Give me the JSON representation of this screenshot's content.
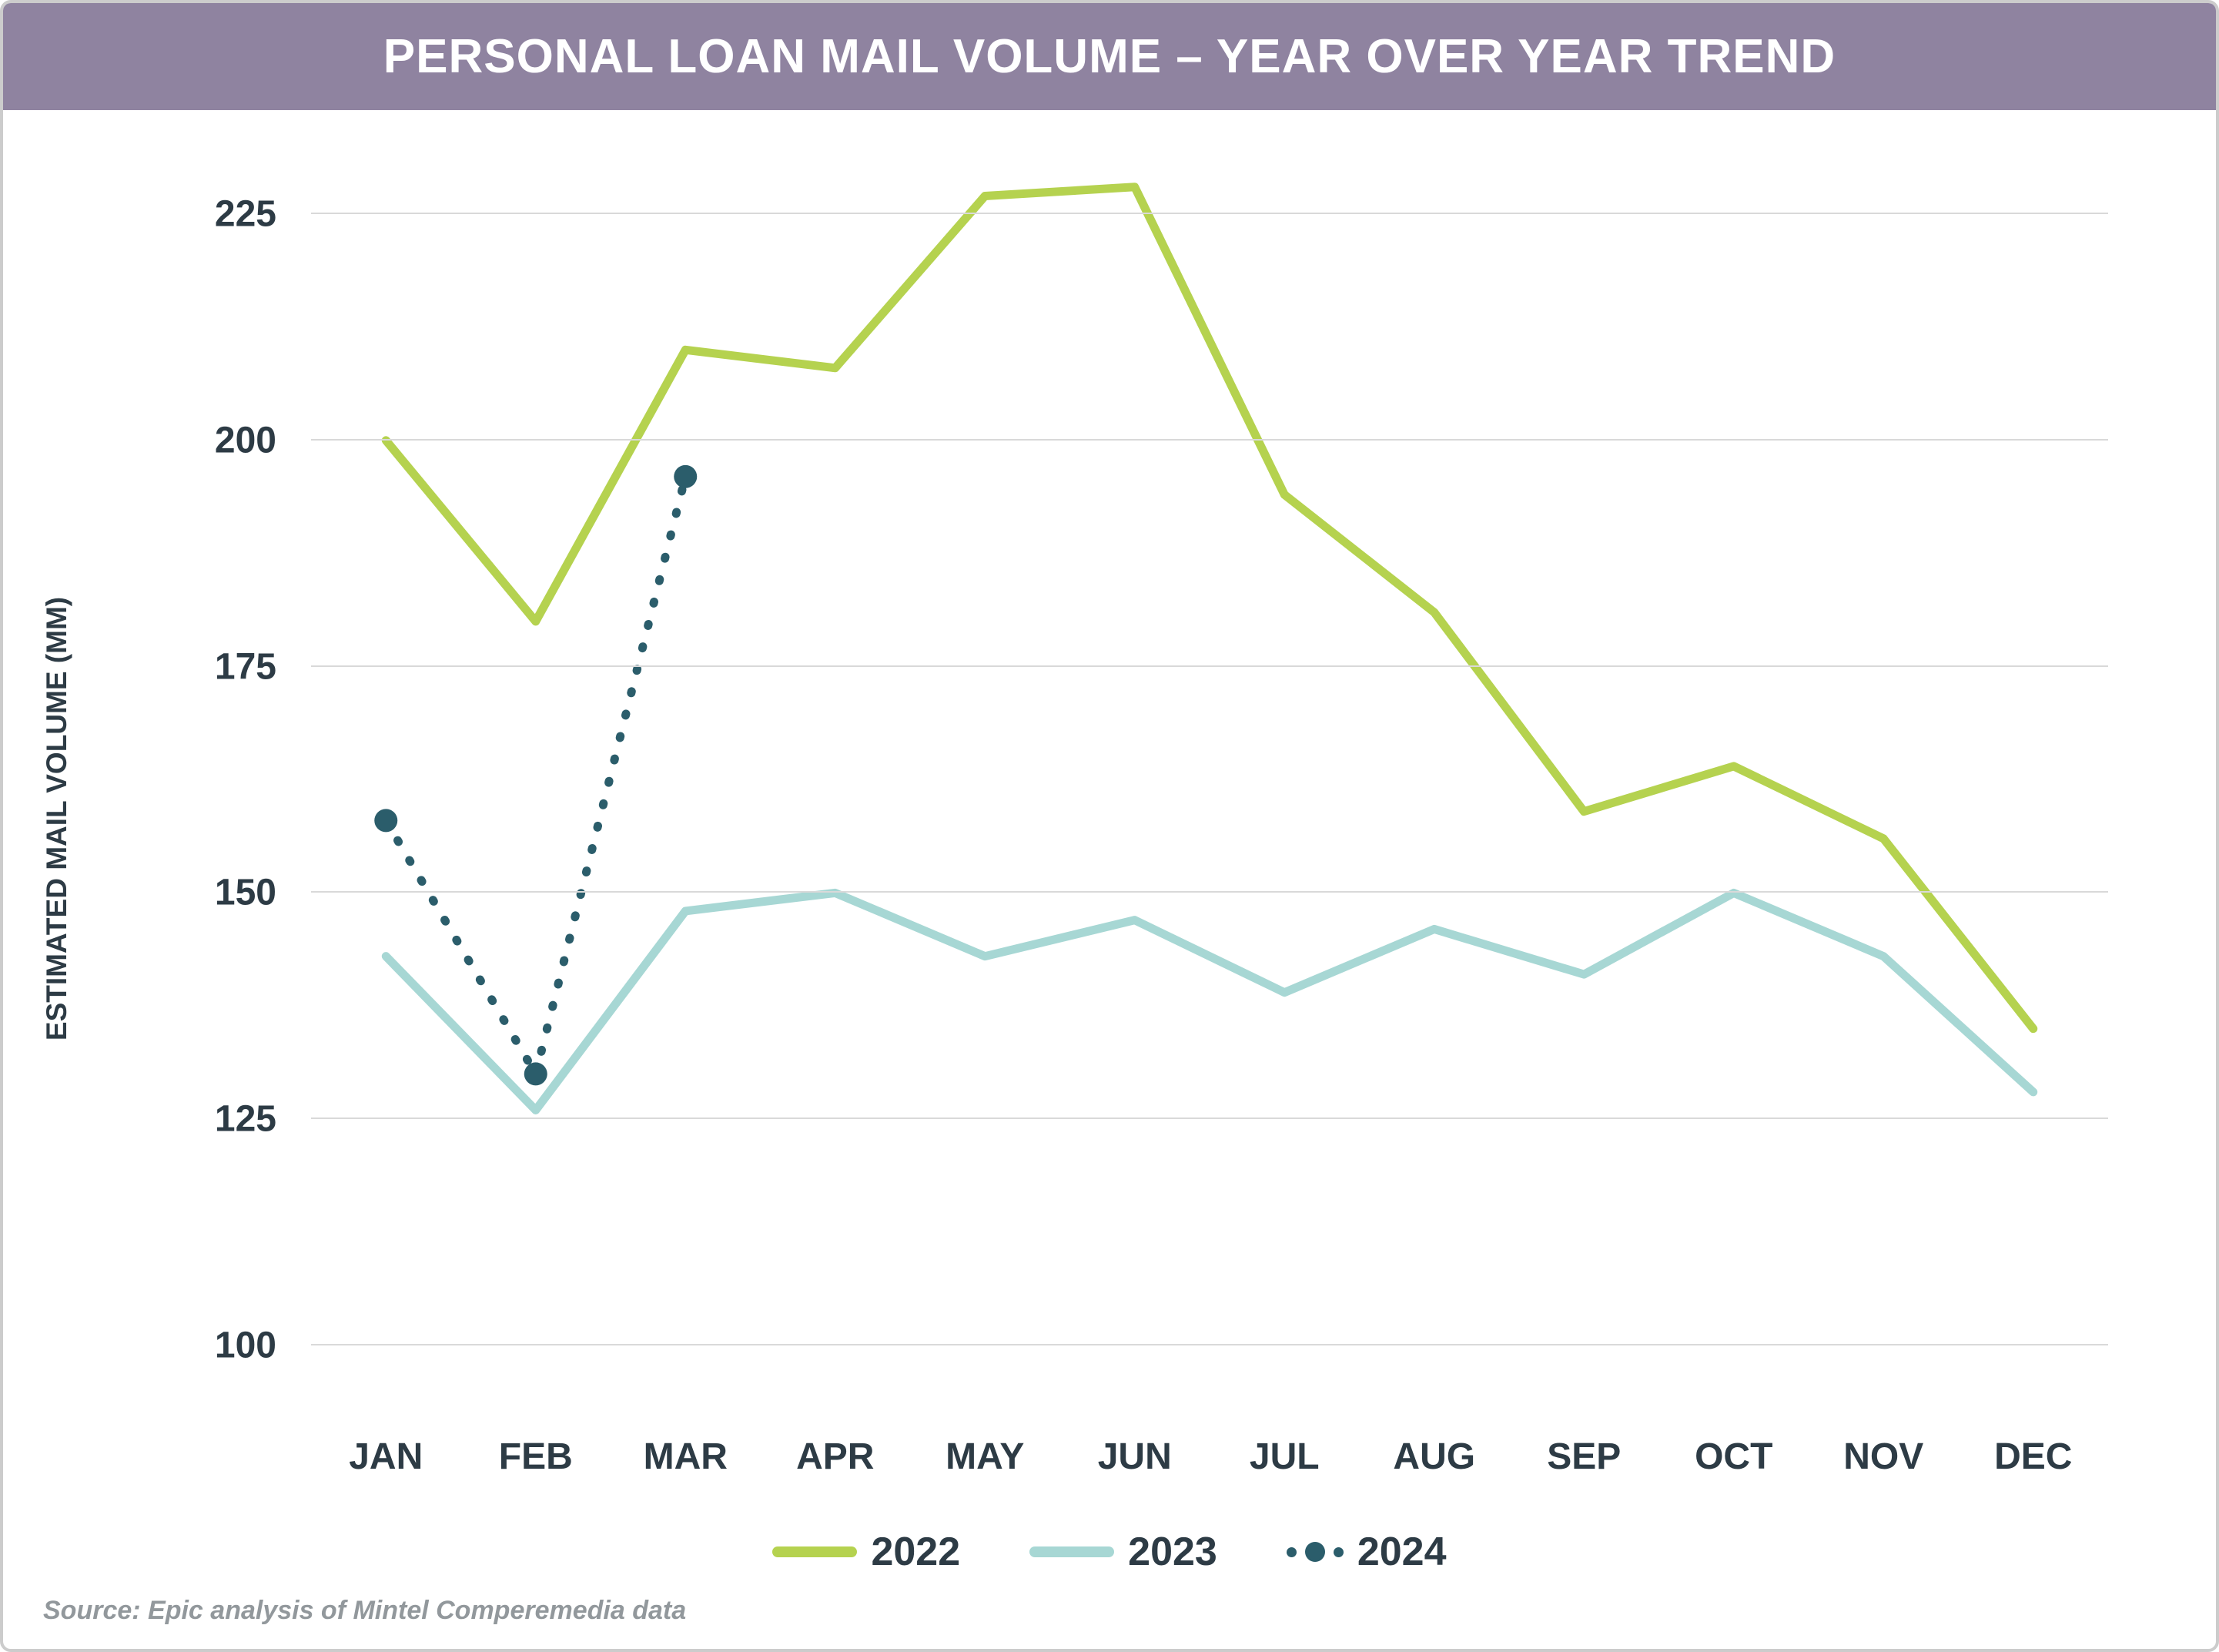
{
  "title": "PERSONAL LOAN MAIL VOLUME – YEAR OVER YEAR TREND",
  "title_bar": {
    "bg": "#8f83a0",
    "color": "#ffffff",
    "fontsize": 62
  },
  "y_axis": {
    "label": "ESTIMATED MAIL VOLUME (MM)",
    "label_fontsize": 37,
    "label_color": "#2d3b45",
    "min": 92,
    "max": 233,
    "ticks": [
      100,
      125,
      150,
      175,
      200,
      225
    ],
    "tick_fontsize": 48,
    "tick_color": "#2d3b45"
  },
  "x_axis": {
    "categories": [
      "JAN",
      "FEB",
      "MAR",
      "APR",
      "MAY",
      "JUN",
      "JUL",
      "AUG",
      "SEP",
      "OCT",
      "NOV",
      "DEC"
    ],
    "tick_fontsize": 48,
    "tick_color": "#2d3b45"
  },
  "grid": {
    "color": "#d9d9d9"
  },
  "series": {
    "s2022": {
      "label": "2022",
      "color": "#b5d24f",
      "stroke_width": 11,
      "style": "solid",
      "values": [
        200,
        180,
        210,
        208,
        227,
        228,
        194,
        181,
        159,
        164,
        156,
        135
      ]
    },
    "s2023": {
      "label": "2023",
      "color": "#a7d7d4",
      "stroke_width": 11,
      "style": "solid",
      "values": [
        143,
        126,
        148,
        150,
        143,
        147,
        139,
        146,
        141,
        150,
        143,
        128
      ]
    },
    "s2024": {
      "label": "2024",
      "color": "#2b5d6b",
      "stroke_width": 11,
      "style": "dotted",
      "marker_radius": 15,
      "values": [
        158,
        130,
        196
      ]
    }
  },
  "legend": {
    "fontsize": 52,
    "color": "#2d3b45"
  },
  "source": {
    "text": "Source: Epic analysis of Mintel Comperemedia data",
    "fontsize": 34,
    "color": "#92989c"
  }
}
